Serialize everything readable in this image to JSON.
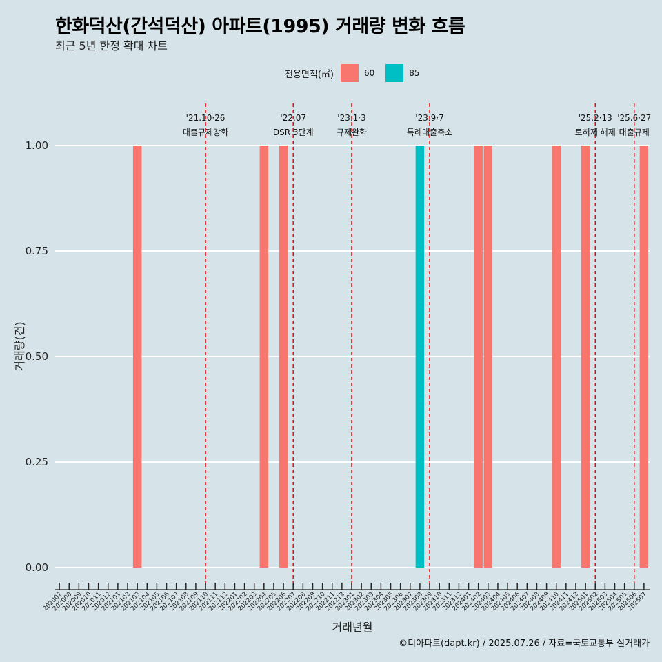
{
  "header": {
    "title": "한화덕산(간석덕산) 아파트(1995) 거래량 변화 흐름",
    "subtitle": "최근 5년 한정 확대 차트"
  },
  "legend": {
    "title": "전용면적(㎡)",
    "items": [
      {
        "label": "60",
        "color": "#F8766D"
      },
      {
        "label": "85",
        "color": "#00BFC4"
      }
    ]
  },
  "caption": "©디아파트(dapt.kr) / 2025.07.26 / 자료=국토교통부 실거래가",
  "chart_data": {
    "type": "bar",
    "title": "한화덕산(간석덕산) 아파트(1995) 거래량 변화 흐름",
    "subtitle": "최근 5년 한정 확대 차트",
    "xlabel": "거래년월",
    "ylabel": "거래량(건)",
    "ylim": [
      0,
      1
    ],
    "yticks": [
      "0.00",
      "0.25",
      "0.50",
      "0.75",
      "1.00"
    ],
    "grid": true,
    "legend_position": "top",
    "categories": [
      "202007",
      "202008",
      "202009",
      "202010",
      "202011",
      "202012",
      "202101",
      "202102",
      "202103",
      "202104",
      "202105",
      "202106",
      "202107",
      "202108",
      "202109",
      "202110",
      "202111",
      "202112",
      "202201",
      "202202",
      "202203",
      "202204",
      "202205",
      "202206",
      "202207",
      "202208",
      "202209",
      "202210",
      "202211",
      "202212",
      "202301",
      "202302",
      "202303",
      "202304",
      "202305",
      "202306",
      "202307",
      "202308",
      "202309",
      "202310",
      "202311",
      "202312",
      "202401",
      "202402",
      "202403",
      "202404",
      "202405",
      "202406",
      "202407",
      "202408",
      "202409",
      "202410",
      "202411",
      "202412",
      "202501",
      "202502",
      "202503",
      "202504",
      "202505",
      "202506",
      "202507"
    ],
    "series": [
      {
        "name": "60",
        "color": "#F8766D",
        "values": {
          "202103": 1,
          "202204": 1,
          "202206": 1,
          "202402": 1,
          "202403": 1,
          "202410": 1,
          "202501": 1,
          "202507": 1
        }
      },
      {
        "name": "85",
        "color": "#00BFC4",
        "values": {
          "202308": 1
        }
      }
    ],
    "events": [
      {
        "date": "202110",
        "label1": "'21.10·26",
        "label2": "대출규제강화"
      },
      {
        "date": "202207",
        "label1": "'22.07",
        "label2": "DSR 3단계"
      },
      {
        "date": "202301",
        "label1": "'23.1·3",
        "label2": "규제완화"
      },
      {
        "date": "202309",
        "label1": "'23.9·7",
        "label2": "특례대출축소"
      },
      {
        "date": "202502",
        "label1": "'25.2·13",
        "label2": "토허제 해제"
      },
      {
        "date": "202506",
        "label1": "'25.6·27",
        "label2": "대출규제"
      }
    ]
  }
}
